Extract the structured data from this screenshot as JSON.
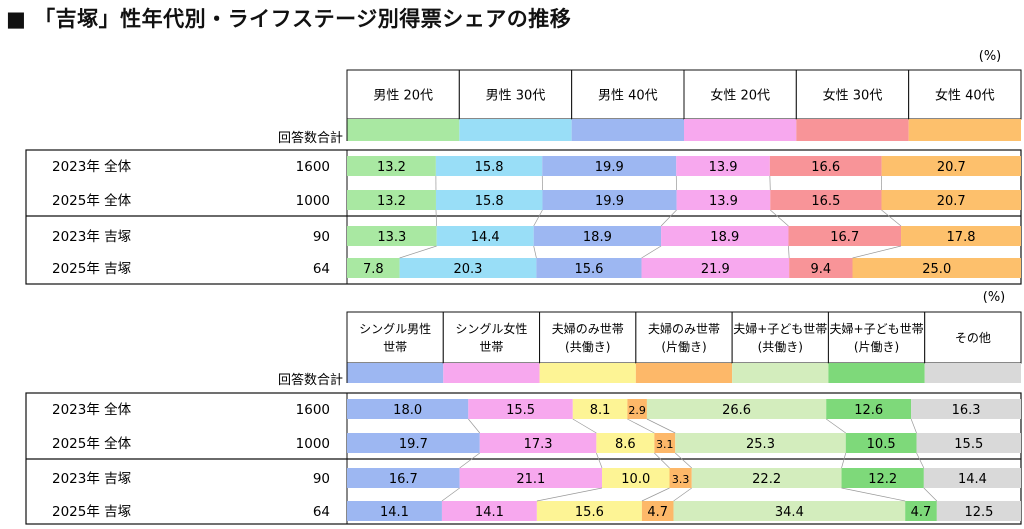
{
  "title": "■ 「吉塚」性年代別・ライフステージ別得票シェアの推移",
  "chart_data": [
    {
      "type": "bar",
      "stacked": "100%",
      "orientation": "horizontal",
      "unit": "(%)",
      "count_header": "回答数合計",
      "categories": [
        {
          "label": "2023年 全体",
          "count": "1600"
        },
        {
          "label": "2025年 全体",
          "count": "1000"
        },
        {
          "label": "2023年 吉塚",
          "count": "90"
        },
        {
          "label": "2025年 吉塚",
          "count": "64"
        }
      ],
      "series": [
        {
          "name": "男性 20代",
          "color": "#a9e8a2",
          "values": [
            13.2,
            13.2,
            13.3,
            7.8
          ]
        },
        {
          "name": "男性 30代",
          "color": "#99def7",
          "values": [
            15.8,
            15.8,
            14.4,
            20.3
          ]
        },
        {
          "name": "男性 40代",
          "color": "#9db7f2",
          "values": [
            19.9,
            19.9,
            18.9,
            15.6
          ]
        },
        {
          "name": "女性 20代",
          "color": "#f7a8ee",
          "values": [
            13.9,
            13.9,
            18.9,
            21.9
          ]
        },
        {
          "name": "女性 30代",
          "color": "#f89498",
          "values": [
            16.6,
            16.5,
            16.7,
            9.4
          ]
        },
        {
          "name": "女性 40代",
          "color": "#fdc06c",
          "values": [
            20.7,
            20.7,
            17.8,
            25.0
          ]
        }
      ]
    },
    {
      "type": "bar",
      "stacked": "100%",
      "orientation": "horizontal",
      "unit": "(%)",
      "count_header": "回答数合計",
      "categories": [
        {
          "label": "2023年 全体",
          "count": "1600"
        },
        {
          "label": "2025年 全体",
          "count": "1000"
        },
        {
          "label": "2023年 吉塚",
          "count": "90"
        },
        {
          "label": "2025年 吉塚",
          "count": "64"
        }
      ],
      "series": [
        {
          "name": "シングル男性\n世帯",
          "color": "#9db7f2",
          "values": [
            18.0,
            19.7,
            16.7,
            14.1
          ]
        },
        {
          "name": "シングル女性\n世帯",
          "color": "#f7a8ee",
          "values": [
            15.5,
            17.3,
            21.1,
            14.1
          ]
        },
        {
          "name": "夫婦のみ世帯\n(共働き)",
          "color": "#fdf495",
          "values": [
            8.1,
            8.6,
            10.0,
            15.6
          ]
        },
        {
          "name": "夫婦のみ世帯\n(片働き)",
          "color": "#fdb869",
          "values": [
            2.9,
            3.1,
            3.3,
            4.7
          ]
        },
        {
          "name": "夫婦+子ども世帯\n(共働き)",
          "color": "#d3edbd",
          "values": [
            26.6,
            25.3,
            22.2,
            34.4
          ]
        },
        {
          "name": "夫婦+子ども世帯\n(片働き)",
          "color": "#7ed97a",
          "values": [
            12.6,
            10.5,
            12.2,
            4.7
          ]
        },
        {
          "name": "その他",
          "color": "#d9d9d9",
          "values": [
            16.3,
            15.5,
            14.4,
            12.5
          ]
        }
      ]
    }
  ]
}
